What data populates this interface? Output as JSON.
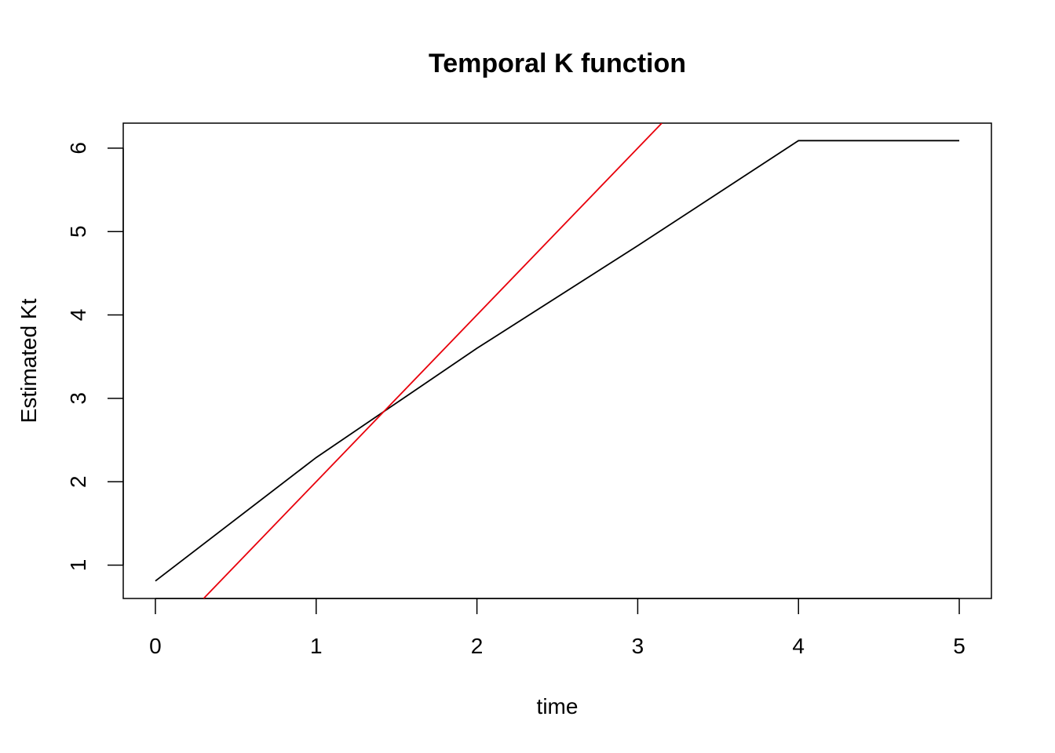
{
  "chart_data": {
    "type": "line",
    "title": "Temporal K function",
    "xlabel": "time",
    "ylabel": "Estimated Kt",
    "xlim": [
      -0.2,
      5.2
    ],
    "ylim": [
      0.6,
      6.3
    ],
    "xticks": [
      0,
      1,
      2,
      3,
      4,
      5
    ],
    "yticks": [
      1,
      2,
      3,
      4,
      5,
      6
    ],
    "xtick_labels": [
      "0",
      "1",
      "2",
      "3",
      "4",
      "5"
    ],
    "ytick_labels": [
      "1",
      "2",
      "3",
      "4",
      "5",
      "6"
    ],
    "grid": false,
    "series": [
      {
        "color": "#000000",
        "x": [
          0,
          1,
          2,
          3,
          4,
          5
        ],
        "y": [
          0.81,
          2.29,
          3.6,
          4.83,
          6.09,
          6.09
        ]
      },
      {
        "color": "#e8000b",
        "x": [
          0.3,
          3.15
        ],
        "y": [
          0.6,
          6.3
        ]
      }
    ]
  }
}
